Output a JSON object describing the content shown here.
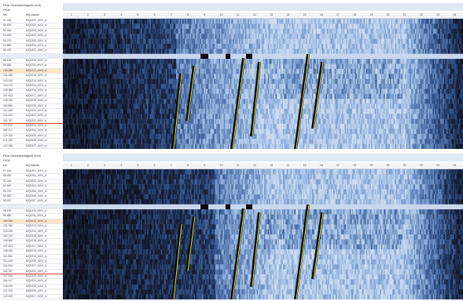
{
  "panels": [
    {
      "title": "Plus-Geschwindigkeit km/h",
      "subtitle": "PKW",
      "col_km": "km",
      "col_name": "MQ-Name"
    },
    {
      "title": "Plus-Geschwindigkeit km/h",
      "subtitle": "PKW",
      "col_km": "km",
      "col_name": "MQ-Name"
    }
  ],
  "rows": [
    {
      "km": "97.430",
      "name": "MQ0201_MVV_A"
    },
    {
      "km": "98.690",
      "name": "MQ0202_MVV_A"
    },
    {
      "km": "91.440",
      "name": "MQ0203_MVV_A"
    },
    {
      "km": "92.690",
      "name": "MQ0204_MVV_A"
    },
    {
      "km": "93.070",
      "name": "MQ0205_MVV_A"
    },
    {
      "km": "94.880",
      "name": "MQ0206_MVV_A"
    },
    {
      "km": "95.497",
      "name": "MQ0207_MVV_A"
    },
    {
      "km": "",
      "name": ""
    },
    {
      "km": "98.190",
      "name": "MQ0210_MVV_A"
    },
    {
      "km": "99.880",
      "name": "MQ0211_MVV_A"
    },
    {
      "km": "100.980",
      "name": "MQ0212_MVV_A"
    },
    {
      "km": "101.980",
      "name": "MQ0213_MVV_A"
    },
    {
      "km": "103.030",
      "name": "MQ0214_MVV_A"
    },
    {
      "km": "104.270",
      "name": "MQ0215_MVV_A"
    },
    {
      "km": "105.880",
      "name": "MQ0216_MVV_A"
    },
    {
      "km": "107.813",
      "name": "MQ0217_MVV_A"
    },
    {
      "km": "108.240",
      "name": "MQ0218_MVV_A"
    },
    {
      "km": "110.880",
      "name": "MQ0219_MVV_A"
    },
    {
      "km": "112.440",
      "name": "MQ0220_MVV_A"
    },
    {
      "km": "114.000",
      "name": "MQ0221_MVV_A"
    },
    {
      "km": "115.787",
      "name": "MQ0222_MVV_A"
    },
    {
      "km": "117.510",
      "name": "MQ0223_MVV_A"
    },
    {
      "km": "118.117",
      "name": "MQ0224_MVV_A"
    },
    {
      "km": "120.200",
      "name": "MQ0225_MVV_A"
    },
    {
      "km": "121.190",
      "name": "MQ0226_MVV_A"
    },
    {
      "km": "122.260",
      "name": "MQ0227_MVV_A"
    }
  ],
  "highlight_orange_index": 10,
  "highlight_red_index": 20,
  "separator_index": 7,
  "chart_data": {
    "type": "heatmap",
    "x": [
      "1",
      "2",
      "3",
      "4",
      "5",
      "6",
      "7",
      "8",
      "9",
      "10",
      "11",
      "12",
      "13",
      "14",
      "15",
      "16",
      "17",
      "18",
      "19",
      "20",
      "21",
      "22",
      "23",
      "24"
    ],
    "colors": {
      "slow": "#0b0e18",
      "mid": "#2f4f86",
      "fast": "#c9d9ef",
      "jam": "#e8e23a"
    }
  }
}
